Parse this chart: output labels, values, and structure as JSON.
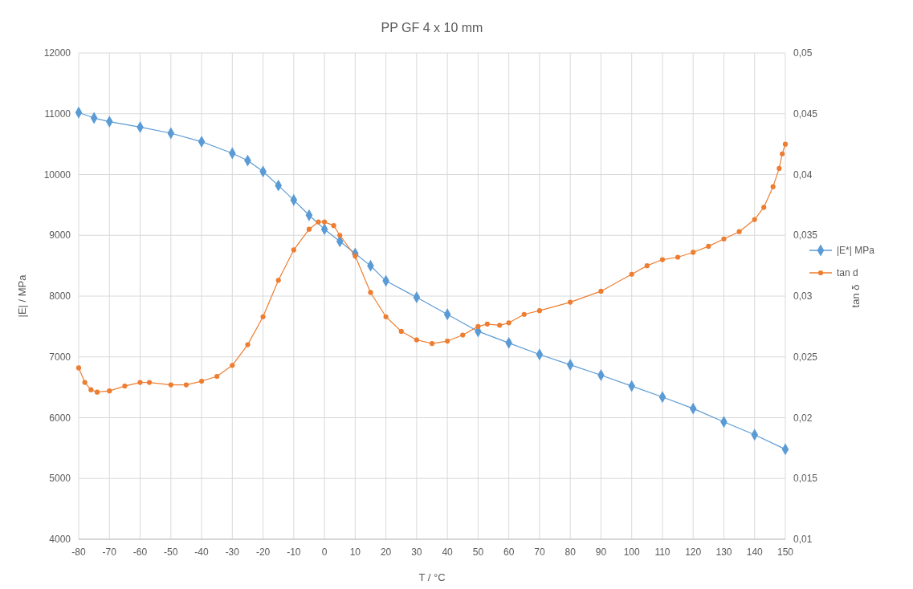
{
  "chart_data": {
    "type": "line",
    "title": "PP GF 4 x 10 mm",
    "xlabel": "T / °C",
    "ylabel": "|E| / MPa",
    "y2label": "tan δ",
    "xlim": [
      -80,
      150
    ],
    "xticks": [
      -80,
      -70,
      -60,
      -50,
      -40,
      -30,
      -20,
      -10,
      0,
      10,
      20,
      30,
      40,
      50,
      60,
      70,
      80,
      90,
      100,
      110,
      120,
      130,
      140,
      150
    ],
    "ylim": [
      4000,
      12000
    ],
    "yticks": [
      4000,
      5000,
      6000,
      7000,
      8000,
      9000,
      10000,
      11000,
      12000
    ],
    "y2lim": [
      0.01,
      0.05
    ],
    "y2ticks": [
      {
        "value": 0.01,
        "label": "0,01"
      },
      {
        "value": 0.015,
        "label": "0,015"
      },
      {
        "value": 0.02,
        "label": "0,02"
      },
      {
        "value": 0.025,
        "label": "0,025"
      },
      {
        "value": 0.03,
        "label": "0,03"
      },
      {
        "value": 0.035,
        "label": "0,035"
      },
      {
        "value": 0.04,
        "label": "0,04"
      },
      {
        "value": 0.045,
        "label": "0,045"
      },
      {
        "value": 0.05,
        "label": "0,05"
      }
    ],
    "grid": true,
    "legend": "right",
    "line_style": "solid",
    "series": [
      {
        "name": "|E*| MPa",
        "color": "#5b9bd5",
        "marker": "diamond",
        "x": [
          -80,
          -75,
          -70,
          -60,
          -50,
          -40,
          -30,
          -25,
          -20,
          -15,
          -10,
          -5,
          0,
          5,
          10,
          15,
          20,
          30,
          40,
          50,
          60,
          70,
          80,
          90,
          100,
          110,
          120,
          130,
          140,
          150
        ],
        "values": [
          11020,
          10930,
          10870,
          10780,
          10680,
          10540,
          10350,
          10230,
          10050,
          9820,
          9580,
          9330,
          9100,
          8900,
          8700,
          8500,
          8250,
          7980,
          7700,
          7420,
          7230,
          7040,
          6870,
          6700,
          6520,
          6340,
          6150,
          5930,
          5720,
          5480
        ]
      },
      {
        "name": "tan d",
        "color": "#ed7d31",
        "marker": "circle",
        "axis": "y2",
        "x": [
          -80,
          -78,
          -76,
          -74,
          -70,
          -65,
          -60,
          -57,
          -50,
          -45,
          -40,
          -35,
          -30,
          -25,
          -20,
          -15,
          -10,
          -5,
          -2,
          0,
          3,
          5,
          10,
          15,
          20,
          25,
          30,
          35,
          40,
          45,
          50,
          53,
          57,
          60,
          65,
          70,
          80,
          90,
          100,
          105,
          110,
          115,
          120,
          125,
          130,
          135,
          140,
          143,
          146,
          148,
          149,
          150
        ],
        "values": [
          0.0241,
          0.0229,
          0.0223,
          0.0221,
          0.0222,
          0.0226,
          0.0229,
          0.0229,
          0.0227,
          0.0227,
          0.023,
          0.0234,
          0.0243,
          0.026,
          0.0283,
          0.0313,
          0.0338,
          0.0355,
          0.0361,
          0.0361,
          0.0358,
          0.035,
          0.0333,
          0.0303,
          0.0283,
          0.0271,
          0.0264,
          0.0261,
          0.0263,
          0.0268,
          0.0275,
          0.0277,
          0.0276,
          0.0278,
          0.0285,
          0.0288,
          0.0295,
          0.0304,
          0.0318,
          0.0325,
          0.033,
          0.0332,
          0.0336,
          0.0341,
          0.0347,
          0.0353,
          0.0363,
          0.0373,
          0.039,
          0.0405,
          0.0417,
          0.0425
        ]
      }
    ]
  }
}
